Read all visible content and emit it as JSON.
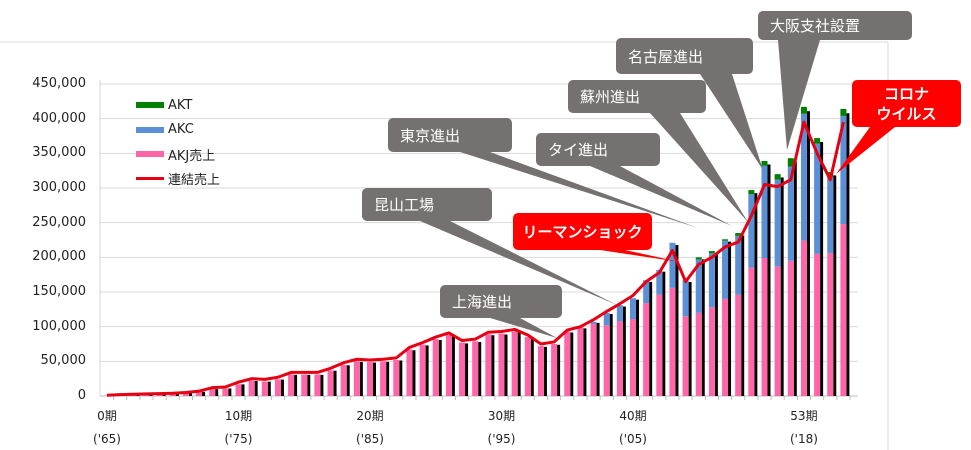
{
  "chart_data": {
    "type": "bar",
    "stacked": true,
    "title": "",
    "xlabel": "",
    "ylabel": "",
    "ylim": [
      0,
      450000
    ],
    "grid": true,
    "legend_position": "top-left",
    "y_ticks": [
      "0",
      "50,000",
      "100,000",
      "150,000",
      "200,000",
      "250,000",
      "300,000",
      "350,000",
      "400,000",
      "450,000"
    ],
    "x_ticks": [
      {
        "period": 0,
        "label": "0期",
        "year": "('65)"
      },
      {
        "period": 10,
        "label": "10期",
        "year": "('75)"
      },
      {
        "period": 20,
        "label": "20期",
        "year": "('85)"
      },
      {
        "period": 30,
        "label": "30期",
        "year": "('95)"
      },
      {
        "period": 40,
        "label": "40期",
        "year": "('05)"
      },
      {
        "period": 53,
        "label": "53期",
        "year": "('18)"
      }
    ],
    "periods_count": 57,
    "series": [
      {
        "name": "AKJ売上",
        "color": "#ff66a8",
        "values": [
          500,
          1000,
          1500,
          2000,
          2500,
          3000,
          4000,
          6000,
          10000,
          11000,
          17000,
          22000,
          21000,
          24000,
          31000,
          31000,
          31000,
          37000,
          45000,
          50000,
          49000,
          50000,
          52000,
          67000,
          74000,
          82000,
          88000,
          77000,
          79000,
          89000,
          90000,
          93000,
          85000,
          72000,
          75000,
          93000,
          99000,
          104000,
          102000,
          108000,
          111000,
          134000,
          146000,
          156000,
          115000,
          120000,
          128000,
          140000,
          146000,
          185000,
          199000,
          187000,
          195000,
          224000,
          205000,
          206000,
          248000
        ]
      },
      {
        "name": "AKC",
        "color": "#5b8fd6",
        "values": [
          0,
          0,
          0,
          0,
          0,
          0,
          0,
          0,
          0,
          0,
          0,
          0,
          0,
          0,
          0,
          0,
          0,
          0,
          0,
          0,
          0,
          0,
          0,
          0,
          0,
          0,
          0,
          0,
          0,
          0,
          0,
          0,
          0,
          0,
          0,
          0,
          0,
          3000,
          18000,
          23000,
          30000,
          33000,
          36000,
          65000,
          52000,
          77000,
          78000,
          84000,
          85000,
          106000,
          133000,
          125000,
          136000,
          183000,
          159000,
          110000,
          156000
        ]
      },
      {
        "name": "AKT",
        "color": "#008000",
        "values": [
          0,
          0,
          0,
          0,
          0,
          0,
          0,
          0,
          0,
          0,
          0,
          0,
          0,
          0,
          0,
          0,
          0,
          0,
          0,
          0,
          0,
          0,
          0,
          0,
          0,
          0,
          0,
          0,
          0,
          0,
          0,
          0,
          0,
          0,
          0,
          0,
          0,
          0,
          0,
          0,
          0,
          0,
          0,
          0,
          0,
          3000,
          3000,
          2000,
          4000,
          6000,
          7000,
          8000,
          12000,
          10000,
          8000,
          7000,
          10000
        ]
      }
    ],
    "line": {
      "name": "連結売上",
      "color": "#e60012",
      "values": [
        1000,
        2000,
        2500,
        3000,
        3500,
        4000,
        5000,
        7000,
        12000,
        13000,
        20000,
        25000,
        24000,
        27000,
        34000,
        34000,
        34000,
        40000,
        48000,
        53000,
        52000,
        53000,
        55000,
        70000,
        77000,
        85000,
        91000,
        80000,
        82000,
        92000,
        93000,
        96000,
        88000,
        75000,
        78000,
        95000,
        100000,
        110000,
        122000,
        133000,
        145000,
        165000,
        178000,
        210000,
        165000,
        190000,
        200000,
        215000,
        222000,
        260000,
        305000,
        302000,
        312000,
        395000,
        350000,
        312000,
        395000
      ]
    },
    "annotations": [
      {
        "text": "上海進出",
        "period": 33,
        "style": "gray"
      },
      {
        "text": "昆山工場",
        "period": 39,
        "style": "gray"
      },
      {
        "text": "東京進出",
        "period": 45,
        "style": "gray"
      },
      {
        "text": "タイ進出",
        "period": 48,
        "style": "gray"
      },
      {
        "text": "蘇州進出",
        "period": 49,
        "style": "gray"
      },
      {
        "text": "名古屋進出",
        "period": 50,
        "style": "gray"
      },
      {
        "text": "大阪支社設置",
        "period": 52,
        "style": "gray"
      },
      {
        "text": "リーマンショック",
        "period": 44,
        "style": "red"
      },
      {
        "text": "コロナ",
        "text2": "ウイルス",
        "period": 55,
        "style": "red"
      }
    ]
  }
}
